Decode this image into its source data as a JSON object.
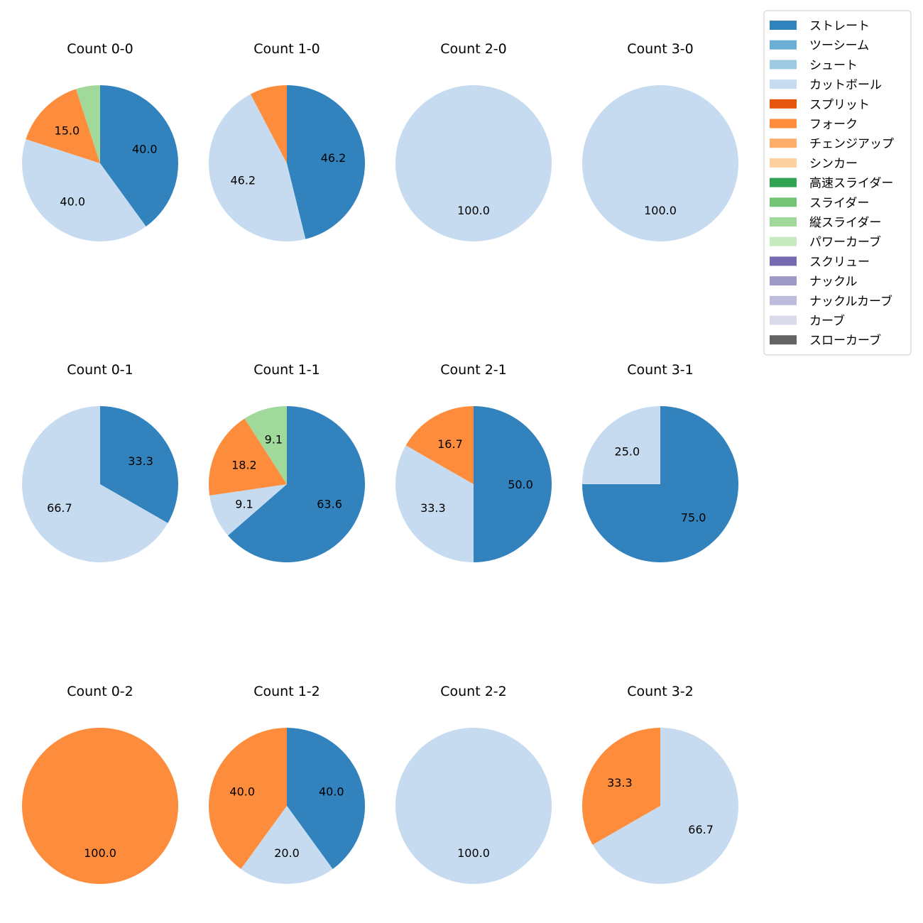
{
  "chart_data": {
    "type": "pie",
    "start_angle": "top",
    "direction": "clockwise",
    "label_format": "percent, 1 decimal",
    "legend_position": "top-right",
    "categories": [
      "ストレート",
      "ツーシーム",
      "シュート",
      "カットボール",
      "スプリット",
      "フォーク",
      "チェンジアップ",
      "シンカー",
      "高速スライダー",
      "スライダー",
      "縦スライダー",
      "パワーカーブ",
      "スクリュー",
      "ナックル",
      "ナックルカーブ",
      "カーブ",
      "スローカーブ"
    ],
    "colors": [
      "#3182bd",
      "#6baed6",
      "#9ecae1",
      "#c6dbef",
      "#e6550d",
      "#fd8d3c",
      "#fdae6b",
      "#fdd0a2",
      "#31a354",
      "#74c476",
      "#a1d99b",
      "#c7e9c0",
      "#756bb1",
      "#9e9ac8",
      "#bcbddc",
      "#dadaeb",
      "#636363"
    ],
    "charts": [
      {
        "title": "Count 0-0",
        "slices": [
          {
            "category": "ストレート",
            "value": 40.0
          },
          {
            "category": "カットボール",
            "value": 40.0
          },
          {
            "category": "フォーク",
            "value": 15.0
          },
          {
            "category": "縦スライダー",
            "value": 5.0
          }
        ],
        "labels": [
          "40.0",
          "40.0",
          "15.0",
          ""
        ]
      },
      {
        "title": "Count 1-0",
        "slices": [
          {
            "category": "ストレート",
            "value": 46.2
          },
          {
            "category": "カットボール",
            "value": 46.2
          },
          {
            "category": "フォーク",
            "value": 7.7
          }
        ],
        "labels": [
          "46.2",
          "46.2",
          ""
        ]
      },
      {
        "title": "Count 2-0",
        "slices": [
          {
            "category": "カットボール",
            "value": 100.0
          }
        ],
        "labels": [
          "100.0"
        ]
      },
      {
        "title": "Count 3-0",
        "slices": [
          {
            "category": "カットボール",
            "value": 100.0
          }
        ],
        "labels": [
          "100.0"
        ]
      },
      {
        "title": "Count 0-1",
        "slices": [
          {
            "category": "ストレート",
            "value": 33.3
          },
          {
            "category": "カットボール",
            "value": 66.7
          }
        ],
        "labels": [
          "33.3",
          "66.7"
        ]
      },
      {
        "title": "Count 1-1",
        "slices": [
          {
            "category": "ストレート",
            "value": 63.6
          },
          {
            "category": "カットボール",
            "value": 9.1
          },
          {
            "category": "フォーク",
            "value": 18.2
          },
          {
            "category": "縦スライダー",
            "value": 9.1
          }
        ],
        "labels": [
          "63.6",
          "9.1",
          "18.2",
          "9.1"
        ]
      },
      {
        "title": "Count 2-1",
        "slices": [
          {
            "category": "ストレート",
            "value": 50.0
          },
          {
            "category": "カットボール",
            "value": 33.3
          },
          {
            "category": "フォーク",
            "value": 16.7
          }
        ],
        "labels": [
          "50.0",
          "33.3",
          "16.7"
        ]
      },
      {
        "title": "Count 3-1",
        "slices": [
          {
            "category": "ストレート",
            "value": 75.0
          },
          {
            "category": "カットボール",
            "value": 25.0
          }
        ],
        "labels": [
          "75.0",
          "25.0"
        ]
      },
      {
        "title": "Count 0-2",
        "slices": [
          {
            "category": "フォーク",
            "value": 100.0
          }
        ],
        "labels": [
          "100.0"
        ]
      },
      {
        "title": "Count 1-2",
        "slices": [
          {
            "category": "ストレート",
            "value": 40.0
          },
          {
            "category": "カットボール",
            "value": 20.0
          },
          {
            "category": "フォーク",
            "value": 40.0
          }
        ],
        "labels": [
          "40.0",
          "20.0",
          "40.0"
        ]
      },
      {
        "title": "Count 2-2",
        "slices": [
          {
            "category": "カットボール",
            "value": 100.0
          }
        ],
        "labels": [
          "100.0"
        ]
      },
      {
        "title": "Count 3-2",
        "slices": [
          {
            "category": "カットボール",
            "value": 66.7
          },
          {
            "category": "フォーク",
            "value": 33.3
          }
        ],
        "labels": [
          "66.7",
          "33.3"
        ]
      }
    ]
  }
}
